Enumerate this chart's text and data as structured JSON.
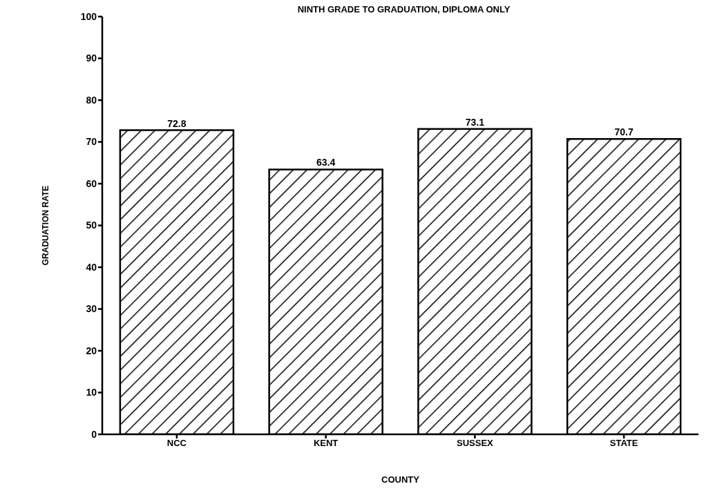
{
  "chart_data": {
    "type": "bar",
    "title": "NINTH GRADE TO GRADUATION, DIPLOMA ONLY",
    "xlabel": "COUNTY",
    "ylabel": "GRADUATION RATE",
    "categories": [
      "NCC",
      "KENT",
      "SUSSEX",
      "STATE"
    ],
    "values": [
      72.8,
      63.4,
      73.1,
      70.7
    ],
    "color": "#000000",
    "ylim": [
      0,
      100
    ],
    "yticks": [
      0,
      10,
      20,
      30,
      40,
      50,
      60,
      70,
      80,
      90,
      100
    ],
    "data_labels": true,
    "grid": false
  }
}
